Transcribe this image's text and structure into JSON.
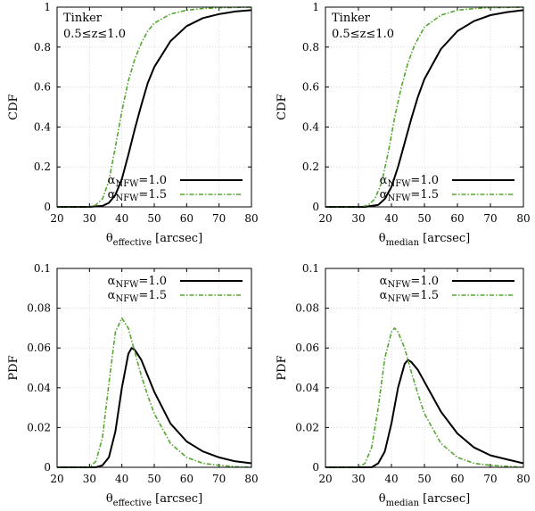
{
  "chart_data": [
    {
      "id": "cdf_effective",
      "type": "line",
      "title": "",
      "ylabel": "CDF",
      "xlabel_main": "θ",
      "xlabel_sub": "effective",
      "xlabel_unit": "[arcsec]",
      "xlim": [
        20,
        80
      ],
      "ylim": [
        0,
        1
      ],
      "xticks": [
        "20",
        "30",
        "40",
        "50",
        "60",
        "70",
        "80"
      ],
      "yticks": [
        "0",
        "0.2",
        "0.4",
        "0.6",
        "0.8",
        "1"
      ],
      "annotation": [
        "Tinker",
        "0.5≤z≤1.0"
      ],
      "legend_position": "bottom-right",
      "series": [
        {
          "name_main": "α",
          "name_sub": "NFW",
          "name_rest": "=1.0",
          "style": "solid",
          "color": "#000000",
          "x": [
            20,
            30,
            34,
            36,
            38,
            40,
            42,
            44,
            46,
            48,
            50,
            55,
            60,
            65,
            70,
            75,
            80
          ],
          "y": [
            0,
            0,
            0.005,
            0.02,
            0.06,
            0.14,
            0.26,
            0.39,
            0.51,
            0.62,
            0.7,
            0.83,
            0.905,
            0.945,
            0.965,
            0.978,
            0.985
          ]
        },
        {
          "name_main": "α",
          "name_sub": "NFW",
          "name_rest": "=1.5",
          "style": "dashdot",
          "color": "#55a630",
          "x": [
            20,
            30,
            32,
            34,
            36,
            38,
            40,
            42,
            44,
            46,
            48,
            50,
            55,
            60,
            65,
            70,
            80
          ],
          "y": [
            0,
            0,
            0.01,
            0.04,
            0.13,
            0.3,
            0.48,
            0.63,
            0.74,
            0.82,
            0.88,
            0.92,
            0.965,
            0.985,
            0.993,
            0.997,
            1.0
          ]
        }
      ]
    },
    {
      "id": "cdf_median",
      "type": "line",
      "title": "",
      "ylabel": "CDF",
      "xlabel_main": "θ",
      "xlabel_sub": "median",
      "xlabel_unit": "[arcsec]",
      "xlim": [
        20,
        80
      ],
      "ylim": [
        0,
        1
      ],
      "xticks": [
        "20",
        "30",
        "40",
        "50",
        "60",
        "70",
        "80"
      ],
      "yticks": [
        "0",
        "0.2",
        "0.4",
        "0.6",
        "0.8",
        "1"
      ],
      "annotation": [
        "Tinker",
        "0.5≤z≤1.0"
      ],
      "legend_position": "bottom-right",
      "series": [
        {
          "name_main": "α",
          "name_sub": "NFW",
          "name_rest": "=1.0",
          "style": "solid",
          "color": "#000000",
          "x": [
            20,
            32,
            36,
            38,
            40,
            42,
            44,
            46,
            48,
            50,
            55,
            60,
            65,
            70,
            75,
            80
          ],
          "y": [
            0,
            0,
            0.01,
            0.04,
            0.1,
            0.2,
            0.32,
            0.44,
            0.55,
            0.64,
            0.79,
            0.88,
            0.93,
            0.96,
            0.975,
            0.985
          ]
        },
        {
          "name_main": "α",
          "name_sub": "NFW",
          "name_rest": "=1.5",
          "style": "dashdot",
          "color": "#55a630",
          "x": [
            20,
            31,
            33,
            35,
            37,
            39,
            41,
            43,
            45,
            47,
            50,
            55,
            60,
            65,
            70,
            80
          ],
          "y": [
            0,
            0,
            0.01,
            0.04,
            0.12,
            0.27,
            0.45,
            0.6,
            0.72,
            0.81,
            0.9,
            0.96,
            0.985,
            0.993,
            0.997,
            1.0
          ]
        }
      ]
    },
    {
      "id": "pdf_effective",
      "type": "line",
      "title": "",
      "ylabel": "PDF",
      "xlabel_main": "θ",
      "xlabel_sub": "effective",
      "xlabel_unit": "[arcsec]",
      "xlim": [
        20,
        80
      ],
      "ylim": [
        0,
        0.1
      ],
      "xticks": [
        "20",
        "30",
        "40",
        "50",
        "60",
        "70",
        "80"
      ],
      "yticks": [
        "0",
        "0.02",
        "0.04",
        "0.06",
        "0.08",
        "0.1"
      ],
      "legend_position": "top-right",
      "series": [
        {
          "name_main": "α",
          "name_sub": "NFW",
          "name_rest": "=1.0",
          "style": "solid",
          "color": "#000000",
          "x": [
            20,
            32,
            34,
            36,
            38,
            40,
            42,
            43,
            44,
            46,
            48,
            50,
            55,
            60,
            65,
            70,
            75,
            80
          ],
          "y": [
            0,
            0,
            0.001,
            0.005,
            0.018,
            0.04,
            0.057,
            0.06,
            0.059,
            0.054,
            0.046,
            0.038,
            0.022,
            0.013,
            0.008,
            0.005,
            0.003,
            0.002
          ]
        },
        {
          "name_main": "α",
          "name_sub": "NFW",
          "name_rest": "=1.5",
          "style": "dashdot",
          "color": "#55a630",
          "x": [
            20,
            30,
            32,
            34,
            36,
            38,
            40,
            42,
            44,
            46,
            48,
            50,
            55,
            60,
            65,
            70,
            75,
            80
          ],
          "y": [
            0,
            0,
            0.003,
            0.015,
            0.042,
            0.068,
            0.075,
            0.07,
            0.058,
            0.046,
            0.036,
            0.027,
            0.012,
            0.005,
            0.002,
            0.001,
            0.0003,
            0
          ]
        }
      ]
    },
    {
      "id": "pdf_median",
      "type": "line",
      "title": "",
      "ylabel": "PDF",
      "xlabel_main": "θ",
      "xlabel_sub": "median",
      "xlabel_unit": "[arcsec]",
      "xlim": [
        20,
        80
      ],
      "ylim": [
        0,
        0.1
      ],
      "xticks": [
        "20",
        "30",
        "40",
        "50",
        "60",
        "70",
        "80"
      ],
      "yticks": [
        "0",
        "0.02",
        "0.04",
        "0.06",
        "0.08",
        "0.1"
      ],
      "legend_position": "top-right",
      "series": [
        {
          "name_main": "α",
          "name_sub": "NFW",
          "name_rest": "=1.0",
          "style": "solid",
          "color": "#000000",
          "x": [
            20,
            34,
            36,
            38,
            40,
            42,
            44,
            45,
            46,
            48,
            50,
            55,
            60,
            65,
            70,
            75,
            80
          ],
          "y": [
            0,
            0,
            0.002,
            0.008,
            0.022,
            0.04,
            0.052,
            0.054,
            0.053,
            0.049,
            0.043,
            0.028,
            0.017,
            0.01,
            0.006,
            0.004,
            0.002
          ]
        },
        {
          "name_main": "α",
          "name_sub": "NFW",
          "name_rest": "=1.5",
          "style": "dashdot",
          "color": "#55a630",
          "x": [
            20,
            30,
            32,
            34,
            36,
            38,
            40,
            41,
            42,
            44,
            46,
            48,
            50,
            55,
            60,
            65,
            70,
            80
          ],
          "y": [
            0,
            0,
            0.002,
            0.01,
            0.03,
            0.055,
            0.068,
            0.07,
            0.068,
            0.06,
            0.048,
            0.037,
            0.027,
            0.012,
            0.005,
            0.002,
            0.001,
            0
          ]
        }
      ]
    }
  ]
}
